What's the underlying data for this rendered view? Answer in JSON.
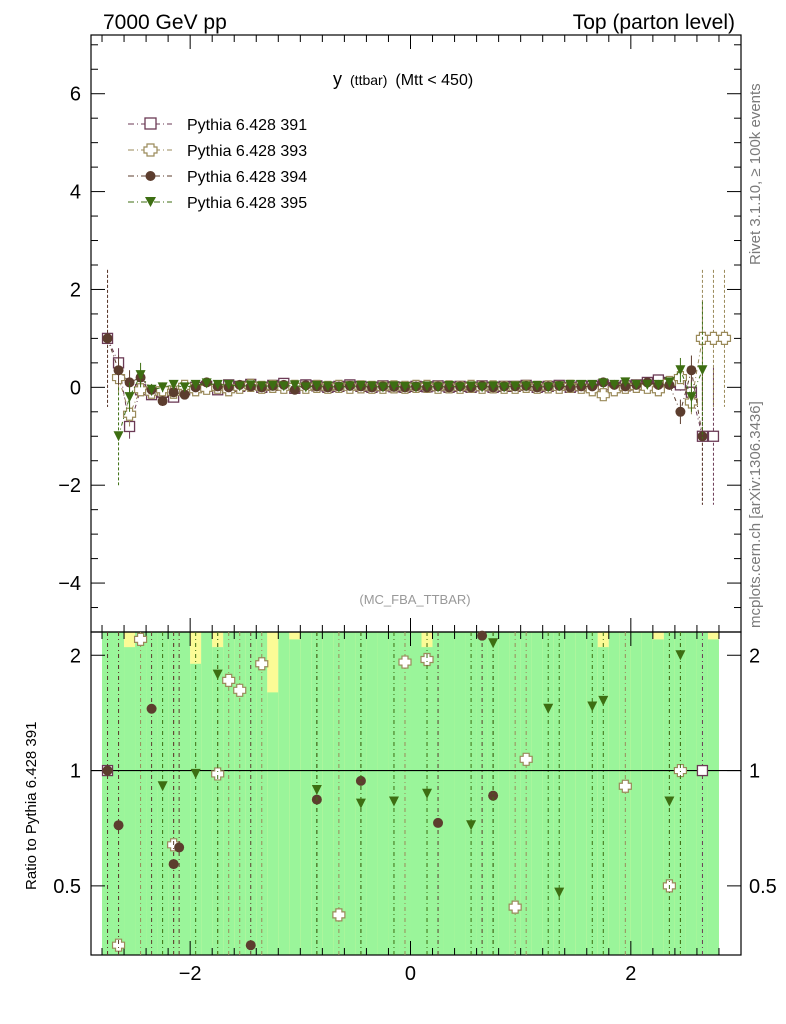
{
  "header": {
    "left": "7000 GeV pp",
    "right": "Top (parton level)"
  },
  "side_labels": {
    "rivet": "Rivet 3.1.10, ≥ 100k events",
    "mcplots": "mcplots.cern.ch [arXiv:1306.3436]"
  },
  "plot_title_main": "y",
  "plot_title_sub": "(ttbar)",
  "plot_title_cut": "(Mtt < 450)",
  "analysis_label": "(MC_FBA_TTBAR)",
  "ratio_ylabel": "Ratio to Pythia 6.428 391",
  "colors": {
    "s391": "#6b3a55",
    "s393": "#9a8a5a",
    "s394": "#5c3d2e",
    "s395": "#3d6e12",
    "band_green": "#9af59a",
    "band_yellow": "#fbfb96"
  },
  "chart_data": [
    {
      "type": "scatter",
      "panel": "main",
      "xlim": [
        -2.9,
        3.0
      ],
      "ylim": [
        -5.0,
        7.2
      ],
      "yticks": [
        -4,
        -2,
        0,
        2,
        4,
        6
      ],
      "xticks": [
        -2,
        0,
        2
      ],
      "series": [
        {
          "name": "Pythia 6.428 391",
          "marker": "open-square",
          "x": [
            -2.75,
            -2.65,
            -2.55,
            -2.45,
            -2.35,
            -2.25,
            -2.15,
            -2.05,
            -1.95,
            -1.85,
            -1.75,
            -1.65,
            -1.55,
            -1.45,
            -1.35,
            -1.25,
            -1.15,
            -1.05,
            -0.95,
            -0.85,
            -0.75,
            -0.65,
            -0.55,
            -0.45,
            -0.35,
            -0.25,
            -0.15,
            -0.05,
            0.05,
            0.15,
            0.25,
            0.35,
            0.45,
            0.55,
            0.65,
            0.75,
            0.85,
            0.95,
            1.05,
            1.15,
            1.25,
            1.35,
            1.45,
            1.55,
            1.65,
            1.75,
            1.85,
            1.95,
            2.05,
            2.15,
            2.25,
            2.35,
            2.45,
            2.55,
            2.65,
            2.75
          ],
          "y": [
            1.0,
            0.5,
            -0.8,
            -0.05,
            -0.15,
            -0.1,
            -0.2,
            -0.05,
            0.0,
            0.02,
            -0.05,
            0.05,
            0.02,
            0.06,
            0.0,
            0.04,
            0.08,
            -0.02,
            0.05,
            0.03,
            0.0,
            0.02,
            0.05,
            0.02,
            0.0,
            0.03,
            0.01,
            0.0,
            0.02,
            0.01,
            0.03,
            0.0,
            0.02,
            0.0,
            0.03,
            0.0,
            0.02,
            0.02,
            0.04,
            0.0,
            0.02,
            0.04,
            0.0,
            0.03,
            0.02,
            0.05,
            0.0,
            0.03,
            0.05,
            0.1,
            0.15,
            0.1,
            0.05,
            -0.1,
            -1.0,
            -1.0
          ],
          "yerr": [
            1.4,
            0.3,
            0.25,
            0.12,
            0.1,
            0.1,
            0.08,
            0.07,
            0.06,
            0.06,
            0.05,
            0.05,
            0.05,
            0.05,
            0.05,
            0.05,
            0.05,
            0.05,
            0.04,
            0.04,
            0.04,
            0.04,
            0.04,
            0.04,
            0.04,
            0.04,
            0.04,
            0.04,
            0.04,
            0.04,
            0.04,
            0.04,
            0.04,
            0.04,
            0.04,
            0.04,
            0.04,
            0.04,
            0.04,
            0.05,
            0.05,
            0.05,
            0.05,
            0.05,
            0.05,
            0.05,
            0.06,
            0.06,
            0.07,
            0.08,
            0.1,
            0.1,
            0.12,
            0.25,
            1.4,
            1.4
          ]
        },
        {
          "name": "Pythia 6.428 393",
          "marker": "open-cross",
          "x": [
            -2.65,
            -2.55,
            -2.45,
            -2.35,
            -2.25,
            -2.15,
            -2.05,
            -1.95,
            -1.85,
            -1.75,
            -1.65,
            -1.55,
            -1.45,
            -1.35,
            -1.25,
            -1.15,
            -1.05,
            -0.95,
            -0.85,
            -0.75,
            -0.65,
            -0.55,
            -0.45,
            -0.35,
            -0.25,
            -0.15,
            -0.05,
            0.05,
            0.15,
            0.25,
            0.35,
            0.45,
            0.55,
            0.65,
            0.75,
            0.85,
            0.95,
            1.05,
            1.15,
            1.25,
            1.35,
            1.45,
            1.55,
            1.65,
            1.75,
            1.85,
            1.95,
            2.05,
            2.15,
            2.25,
            2.35,
            2.45,
            2.55,
            2.65,
            2.75,
            2.85
          ],
          "y": [
            0.2,
            -0.55,
            -0.05,
            -0.1,
            -0.05,
            -0.1,
            0.02,
            -0.05,
            -0.02,
            0.0,
            -0.05,
            0.0,
            0.04,
            0.0,
            0.02,
            0.0,
            0.02,
            0.0,
            0.02,
            0.0,
            0.02,
            0.0,
            0.01,
            0.0,
            0.0,
            0.01,
            0.0,
            0.02,
            0.02,
            0.0,
            0.01,
            0.0,
            0.02,
            0.0,
            0.01,
            0.0,
            0.0,
            0.02,
            0.0,
            0.01,
            0.0,
            0.02,
            0.0,
            -0.05,
            -0.15,
            -0.05,
            0.0,
            0.02,
            0.0,
            -0.05,
            0.1,
            0.2,
            -0.3,
            1.0,
            1.0,
            1.0
          ],
          "yerr": [
            0.3,
            0.25,
            0.12,
            0.1,
            0.1,
            0.08,
            0.07,
            0.06,
            0.06,
            0.05,
            0.05,
            0.05,
            0.05,
            0.05,
            0.05,
            0.05,
            0.05,
            0.04,
            0.04,
            0.04,
            0.04,
            0.04,
            0.04,
            0.04,
            0.04,
            0.04,
            0.04,
            0.04,
            0.04,
            0.04,
            0.04,
            0.04,
            0.04,
            0.04,
            0.04,
            0.04,
            0.04,
            0.04,
            0.05,
            0.05,
            0.05,
            0.05,
            0.05,
            0.05,
            0.05,
            0.06,
            0.06,
            0.07,
            0.08,
            0.1,
            0.1,
            0.12,
            0.25,
            1.4,
            1.4,
            1.4
          ]
        },
        {
          "name": "Pythia 6.428 394",
          "marker": "filled-circle",
          "x": [
            -2.75,
            -2.65,
            -2.55,
            -2.45,
            -2.35,
            -2.25,
            -2.15,
            -2.05,
            -1.95,
            -1.85,
            -1.75,
            -1.65,
            -1.55,
            -1.45,
            -1.35,
            -1.25,
            -1.15,
            -1.05,
            -0.95,
            -0.85,
            -0.75,
            -0.65,
            -0.55,
            -0.45,
            -0.35,
            -0.25,
            -0.15,
            -0.05,
            0.05,
            0.15,
            0.25,
            0.35,
            0.45,
            0.55,
            0.65,
            0.75,
            0.85,
            0.95,
            1.05,
            1.15,
            1.25,
            1.35,
            1.45,
            1.55,
            1.65,
            1.75,
            1.85,
            1.95,
            2.05,
            2.15,
            2.25,
            2.35,
            2.45,
            2.55,
            2.65
          ],
          "y": [
            1.0,
            0.35,
            0.1,
            0.2,
            -0.05,
            -0.28,
            -0.1,
            -0.15,
            0.0,
            0.1,
            0.02,
            0.0,
            0.05,
            0.02,
            0.0,
            0.03,
            0.05,
            -0.05,
            0.04,
            0.02,
            0.0,
            0.02,
            0.03,
            0.02,
            0.0,
            0.02,
            0.01,
            0.0,
            0.02,
            0.0,
            0.02,
            0.0,
            0.02,
            0.0,
            0.03,
            0.0,
            0.02,
            0.02,
            0.03,
            0.0,
            0.02,
            0.03,
            0.0,
            0.02,
            0.02,
            0.1,
            0.05,
            0.02,
            0.05,
            0.1,
            0.05,
            0.05,
            -0.5,
            0.35,
            -1.0
          ],
          "yerr": [
            1.4,
            0.3,
            0.25,
            0.12,
            0.1,
            0.1,
            0.08,
            0.07,
            0.06,
            0.06,
            0.05,
            0.05,
            0.05,
            0.05,
            0.05,
            0.05,
            0.05,
            0.05,
            0.04,
            0.04,
            0.04,
            0.04,
            0.04,
            0.04,
            0.04,
            0.04,
            0.04,
            0.04,
            0.04,
            0.04,
            0.04,
            0.04,
            0.04,
            0.04,
            0.04,
            0.04,
            0.04,
            0.04,
            0.04,
            0.05,
            0.05,
            0.05,
            0.05,
            0.05,
            0.05,
            0.05,
            0.06,
            0.06,
            0.07,
            0.08,
            0.1,
            0.1,
            0.25,
            0.3,
            1.4
          ]
        },
        {
          "name": "Pythia 6.428 395",
          "marker": "filled-triangle-down",
          "x": [
            -2.65,
            -2.55,
            -2.45,
            -2.35,
            -2.25,
            -2.15,
            -2.05,
            -1.95,
            -1.85,
            -1.75,
            -1.65,
            -1.55,
            -1.45,
            -1.35,
            -1.25,
            -1.15,
            -1.05,
            -0.95,
            -0.85,
            -0.75,
            -0.65,
            -0.55,
            -0.45,
            -0.35,
            -0.25,
            -0.15,
            -0.05,
            0.05,
            0.15,
            0.25,
            0.35,
            0.45,
            0.55,
            0.65,
            0.75,
            0.85,
            0.95,
            1.05,
            1.15,
            1.25,
            1.35,
            1.45,
            1.55,
            1.65,
            1.75,
            1.85,
            1.95,
            2.05,
            2.15,
            2.25,
            2.35,
            2.45,
            2.55,
            2.65
          ],
          "y": [
            -1.0,
            -0.2,
            0.25,
            -0.05,
            0.0,
            0.05,
            0.0,
            0.05,
            0.08,
            0.05,
            0.05,
            0.02,
            0.04,
            0.02,
            0.03,
            0.02,
            0.04,
            0.0,
            0.03,
            0.02,
            0.0,
            0.02,
            0.03,
            0.02,
            0.0,
            0.02,
            0.01,
            0.0,
            0.02,
            0.0,
            0.03,
            0.0,
            0.02,
            0.0,
            0.02,
            0.0,
            0.02,
            0.02,
            0.03,
            0.0,
            0.02,
            0.05,
            0.05,
            0.05,
            0.08,
            0.05,
            0.1,
            0.05,
            0.05,
            0.05,
            0.1,
            0.35,
            -0.2,
            0.35
          ],
          "yerr": [
            1.0,
            0.3,
            0.25,
            0.12,
            0.1,
            0.1,
            0.08,
            0.07,
            0.06,
            0.06,
            0.05,
            0.05,
            0.05,
            0.05,
            0.05,
            0.05,
            0.05,
            0.05,
            0.04,
            0.04,
            0.04,
            0.04,
            0.04,
            0.04,
            0.04,
            0.04,
            0.04,
            0.04,
            0.04,
            0.04,
            0.04,
            0.04,
            0.04,
            0.04,
            0.04,
            0.04,
            0.04,
            0.04,
            0.05,
            0.05,
            0.05,
            0.05,
            0.05,
            0.05,
            0.05,
            0.06,
            0.06,
            0.07,
            0.08,
            0.1,
            0.1,
            0.25,
            0.3,
            1.4
          ]
        }
      ]
    },
    {
      "type": "scatter",
      "panel": "ratio",
      "xlim": [
        -2.9,
        3.0
      ],
      "ylim": [
        0.33,
        2.3
      ],
      "yticks": [
        0.5,
        1,
        2
      ],
      "xticks": [
        -2,
        0,
        2
      ],
      "reference_line": 1,
      "bands": {
        "bins": [
          -2.8,
          -2.7,
          -2.6,
          -2.5,
          -2.4,
          -2.3,
          -2.2,
          -2.1,
          -2.0,
          -1.9,
          -1.8,
          -1.7,
          -1.6,
          -1.5,
          -1.4,
          -1.3,
          -1.2,
          -1.1,
          -1.0,
          -0.9,
          -0.8,
          -0.7,
          -0.6,
          -0.5,
          -0.4,
          -0.3,
          -0.2,
          -0.1,
          0.0,
          0.1,
          0.2,
          0.3,
          0.4,
          0.5,
          0.6,
          0.7,
          0.8,
          0.9,
          1.0,
          1.1,
          1.2,
          1.3,
          1.4,
          1.5,
          1.6,
          1.7,
          1.8,
          1.9,
          2.0,
          2.1,
          2.2,
          2.3,
          2.4,
          2.5,
          2.6,
          2.7,
          2.8
        ],
        "green_hi": [
          2.3,
          2.3,
          2.1,
          2.3,
          2.3,
          2.3,
          2.3,
          2.3,
          1.9,
          2.3,
          2.1,
          2.3,
          2.3,
          2.3,
          2.3,
          1.6,
          2.3,
          2.2,
          2.3,
          2.3,
          2.3,
          2.3,
          2.3,
          2.3,
          2.3,
          2.3,
          2.3,
          2.3,
          2.3,
          2.1,
          2.3,
          2.3,
          2.3,
          2.3,
          2.3,
          2.3,
          2.3,
          2.3,
          2.3,
          2.3,
          2.3,
          2.3,
          2.3,
          2.3,
          2.3,
          2.1,
          2.3,
          2.3,
          2.3,
          2.3,
          2.2,
          2.3,
          2.3,
          2.3,
          2.3,
          2.2
        ],
        "green_lo": [
          0.33,
          0.33,
          0.33,
          0.33,
          0.33,
          0.33,
          0.33,
          0.33,
          0.33,
          0.33,
          0.33,
          0.33,
          0.33,
          0.33,
          0.33,
          0.33,
          0.33,
          0.33,
          0.33,
          0.33,
          0.33,
          0.33,
          0.33,
          0.33,
          0.33,
          0.33,
          0.33,
          0.33,
          0.33,
          0.33,
          0.33,
          0.33,
          0.33,
          0.33,
          0.33,
          0.33,
          0.33,
          0.33,
          0.33,
          0.33,
          0.33,
          0.33,
          0.33,
          0.33,
          0.33,
          0.33,
          0.33,
          0.33,
          0.33,
          0.33,
          0.33,
          0.33,
          0.33,
          0.33,
          0.33,
          0.33
        ],
        "yellow_hi": [
          2.3,
          2.3,
          2.3,
          2.3,
          2.3,
          2.3,
          2.3,
          2.3,
          2.3,
          2.3,
          2.3,
          2.3,
          2.3,
          2.3,
          2.3,
          2.3,
          2.3,
          2.3,
          2.3,
          2.3,
          2.3,
          2.3,
          2.3,
          2.3,
          2.3,
          2.3,
          2.3,
          2.3,
          2.3,
          2.3,
          2.3,
          2.3,
          2.3,
          2.3,
          2.3,
          2.3,
          2.3,
          2.3,
          2.3,
          2.3,
          2.3,
          2.3,
          2.3,
          2.3,
          2.3,
          2.3,
          2.3,
          2.3,
          2.3,
          2.3,
          2.3,
          2.3,
          2.3,
          2.3,
          2.3,
          2.3
        ]
      },
      "series": [
        {
          "name": "Pythia 6.428 391",
          "x": [
            -2.75,
            2.65
          ],
          "y": [
            1.0,
            1.0
          ]
        },
        {
          "name": "Pythia 6.428 393",
          "x": [
            -2.65,
            -2.45,
            -2.15,
            -1.75,
            -1.65,
            -1.55,
            -1.35,
            -0.65,
            -0.05,
            0.15,
            0.95,
            1.05,
            1.95,
            2.35,
            2.45
          ],
          "y": [
            0.35,
            2.2,
            0.64,
            0.98,
            1.72,
            1.62,
            1.9,
            0.42,
            1.92,
            1.95,
            0.44,
            1.07,
            0.91,
            0.5,
            1.0
          ]
        },
        {
          "name": "Pythia 6.428 394",
          "x": [
            -2.75,
            -2.65,
            -2.35,
            -2.15,
            -2.1,
            -1.45,
            -0.85,
            -0.45,
            0.25,
            0.65,
            0.75
          ],
          "y": [
            1.0,
            0.72,
            1.45,
            0.57,
            0.63,
            0.35,
            0.84,
            0.94,
            0.73,
            2.25,
            0.86
          ]
        },
        {
          "name": "Pythia 6.428 395",
          "x": [
            -2.25,
            -1.95,
            -1.75,
            -0.85,
            -0.45,
            -0.15,
            0.15,
            0.55,
            0.75,
            1.25,
            1.35,
            1.65,
            1.75,
            2.35,
            2.45
          ],
          "y": [
            0.91,
            0.98,
            1.78,
            0.89,
            0.82,
            0.83,
            0.87,
            0.72,
            2.15,
            1.45,
            0.48,
            1.47,
            1.52,
            0.83,
            2.0
          ]
        }
      ]
    }
  ]
}
